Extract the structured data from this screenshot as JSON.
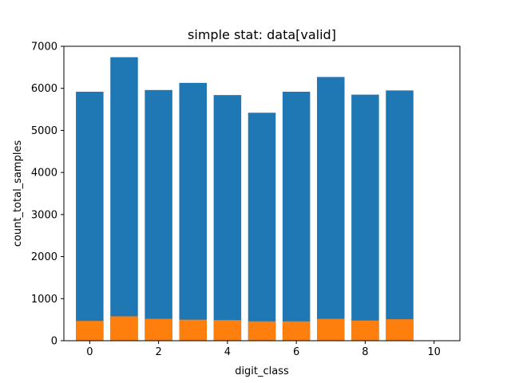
{
  "chart_data": {
    "type": "bar",
    "title": "simple stat: data[valid]",
    "xlabel": "digit_class",
    "ylabel": "count_total_samples",
    "xlim": [
      -0.75,
      10.75
    ],
    "ylim": [
      0,
      7000
    ],
    "xticks": [
      0,
      2,
      4,
      6,
      8,
      10
    ],
    "yticks": [
      0,
      1000,
      2000,
      3000,
      4000,
      5000,
      6000,
      7000
    ],
    "bar_width": 0.8,
    "grid": false,
    "legend": "none",
    "x": [
      0,
      1,
      2,
      3,
      4,
      5,
      6,
      7,
      8,
      9
    ],
    "series": [
      {
        "color": "#1f77b4",
        "values": [
          5920,
          6740,
          5960,
          6130,
          5840,
          5420,
          5920,
          6270,
          5850,
          5950
        ]
      },
      {
        "color": "#ff7f0e",
        "values": [
          470,
          580,
          520,
          500,
          490,
          460,
          460,
          520,
          480,
          510
        ]
      }
    ]
  }
}
